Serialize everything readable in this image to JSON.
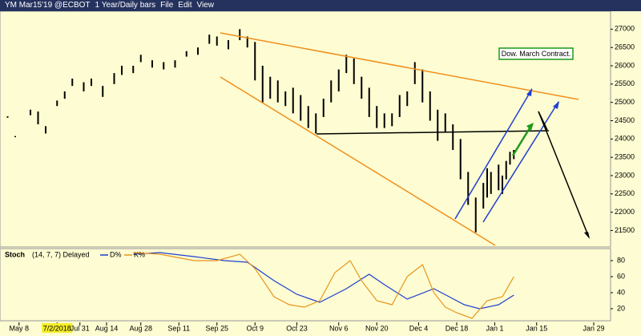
{
  "window": {
    "title": "YM Mar15'19 @ECBOT",
    "interval": "1 Year/Daily bars",
    "menu": [
      "File",
      "Edit",
      "View"
    ]
  },
  "chart_data": [
    {
      "type": "ohlc",
      "annotations": [
        "Dow.  March Contract."
      ],
      "x": [
        2,
        4,
        8,
        10,
        12,
        15,
        17,
        19,
        22,
        24,
        27,
        30,
        32,
        35,
        37,
        40,
        43,
        46,
        49,
        52,
        55,
        57,
        60,
        63,
        65,
        67,
        69,
        71,
        73,
        75,
        77,
        79,
        81,
        83,
        85,
        87,
        89,
        91,
        93,
        95,
        97,
        99,
        101,
        103,
        105,
        107,
        109,
        111,
        113,
        115,
        117,
        119,
        121,
        123,
        125,
        127,
        128,
        129,
        131,
        132,
        133,
        134,
        135
      ],
      "high": [
        24620,
        24080,
        24800,
        24750,
        24350,
        25050,
        25300,
        25650,
        25550,
        25650,
        25450,
        25800,
        26000,
        26000,
        26300,
        26150,
        26100,
        26150,
        26400,
        26500,
        26850,
        26800,
        26700,
        27000,
        26800,
        26650,
        26000,
        25700,
        25600,
        25300,
        25400,
        25200,
        24900,
        24700,
        25100,
        25600,
        25900,
        26300,
        26200,
        25700,
        25400,
        24900,
        24700,
        24700,
        25200,
        25300,
        26100,
        25900,
        25300,
        24800,
        24700,
        24400,
        24000,
        23100,
        22400,
        22800,
        23200,
        23100,
        23300,
        23000,
        23400,
        23650,
        23700
      ],
      "low": [
        24580,
        24050,
        24650,
        24400,
        24150,
        24900,
        25100,
        25450,
        25300,
        25450,
        25150,
        25500,
        25750,
        25800,
        26100,
        25950,
        25900,
        25950,
        26250,
        26300,
        26600,
        26550,
        26450,
        26700,
        26500,
        25600,
        25000,
        25100,
        25000,
        24900,
        24700,
        24500,
        24300,
        24150,
        24600,
        25000,
        25300,
        25800,
        25500,
        25100,
        24600,
        24300,
        24300,
        24350,
        24600,
        24900,
        25500,
        25000,
        24500,
        23950,
        24200,
        23700,
        22900,
        22200,
        21450,
        22100,
        22400,
        22500,
        22600,
        22500,
        22900,
        23300,
        23450
      ],
      "xlim": [
        0,
        160
      ],
      "xticks": [
        {
          "value": 5,
          "label": "May 8"
        },
        {
          "value": 15,
          "label": "7/2/2018"
        },
        {
          "value": 21,
          "label": "Jul 31"
        },
        {
          "value": 28,
          "label": "Aug 14"
        },
        {
          "value": 37,
          "label": "Aug 28"
        },
        {
          "value": 47,
          "label": "Sep 11"
        },
        {
          "value": 57,
          "label": "Sep 25"
        },
        {
          "value": 67,
          "label": "Oct 9"
        },
        {
          "value": 78,
          "label": "Oct 23"
        },
        {
          "value": 89,
          "label": "Nov 6"
        },
        {
          "value": 99,
          "label": "Nov 20"
        },
        {
          "value": 110,
          "label": "Dec 4"
        },
        {
          "value": 120,
          "label": "Dec 18"
        },
        {
          "value": 130,
          "label": "Jan 1"
        },
        {
          "value": 141,
          "label": "Jan 15"
        },
        {
          "value": 156,
          "label": "Jan 29"
        }
      ],
      "ylim": [
        21050,
        27490
      ],
      "yticks": [
        21500,
        22000,
        22500,
        23000,
        23500,
        24000,
        24500,
        25000,
        25500,
        26000,
        26500,
        27000
      ],
      "color": "#000000"
    },
    {
      "type": "line",
      "title": "Stoch",
      "subtitle": "(14, 7, 7) Delayed",
      "xlim": [
        0,
        160
      ],
      "ylim": [
        5,
        95
      ],
      "yticks": [
        20,
        40,
        60,
        80
      ],
      "series": [
        {
          "name": "D%",
          "color": "#1f3fd0",
          "x": [
            35,
            42,
            51,
            59,
            65,
            72,
            78,
            84,
            91,
            97,
            101,
            107,
            114,
            118,
            122,
            126,
            131,
            135
          ],
          "values": [
            88,
            90,
            85,
            80,
            78,
            55,
            38,
            28,
            45,
            63,
            50,
            32,
            45,
            35,
            25,
            20,
            25,
            37
          ]
        },
        {
          "name": "K%",
          "color": "#e8961e",
          "x": [
            35,
            42,
            51,
            57,
            63,
            67,
            72,
            76,
            80,
            84,
            88,
            92,
            95,
            99,
            103,
            107,
            111,
            114,
            117,
            120,
            124,
            128,
            132,
            135
          ],
          "values": [
            90,
            88,
            80,
            80,
            88,
            70,
            35,
            25,
            22,
            30,
            65,
            80,
            55,
            30,
            25,
            60,
            75,
            40,
            22,
            15,
            8,
            30,
            35,
            60
          ]
        }
      ]
    }
  ]
}
